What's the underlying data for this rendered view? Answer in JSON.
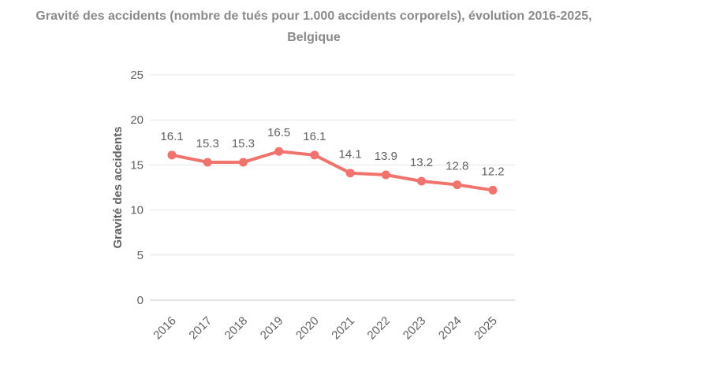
{
  "chart_data": {
    "type": "line",
    "title": "Gravité des accidents (nombre de tués pour 1.000 accidents corporels), évolution 2016-2025, Belgique",
    "title_lines": [
      "Gravité des accidents (nombre de tués pour 1.000 accidents corporels), évolution 2016-2025,",
      "Belgique"
    ],
    "categories": [
      "2016",
      "2017",
      "2018",
      "2019",
      "2020",
      "2021",
      "2022",
      "2023",
      "2024",
      "2025"
    ],
    "series": [
      {
        "name": "Gravité des accidents",
        "values": [
          16.1,
          15.3,
          15.3,
          16.5,
          16.1,
          14.1,
          13.9,
          13.2,
          12.8,
          12.2
        ]
      }
    ],
    "point_labels": [
      "16.1",
      "15.3",
      "15.3",
      "16.5",
      "16.1",
      "14.1",
      "13.9",
      "13.2",
      "12.8",
      "12.2"
    ],
    "xlabel": "",
    "ylabel": "Gravité des accidents",
    "ylim": [
      0,
      25
    ],
    "yticks": [
      0,
      5,
      10,
      15,
      20,
      25
    ],
    "grid": true,
    "legend": "none",
    "x_tick_rotation": -45,
    "colors": {
      "line": "#f0736d",
      "grid": "#e6e6e6",
      "axis_line": "#cccccc",
      "tick_text": "#616161",
      "point_label_text": "#616161",
      "axis_title_text": "#616161",
      "title_text": "#8a8a8a"
    }
  }
}
